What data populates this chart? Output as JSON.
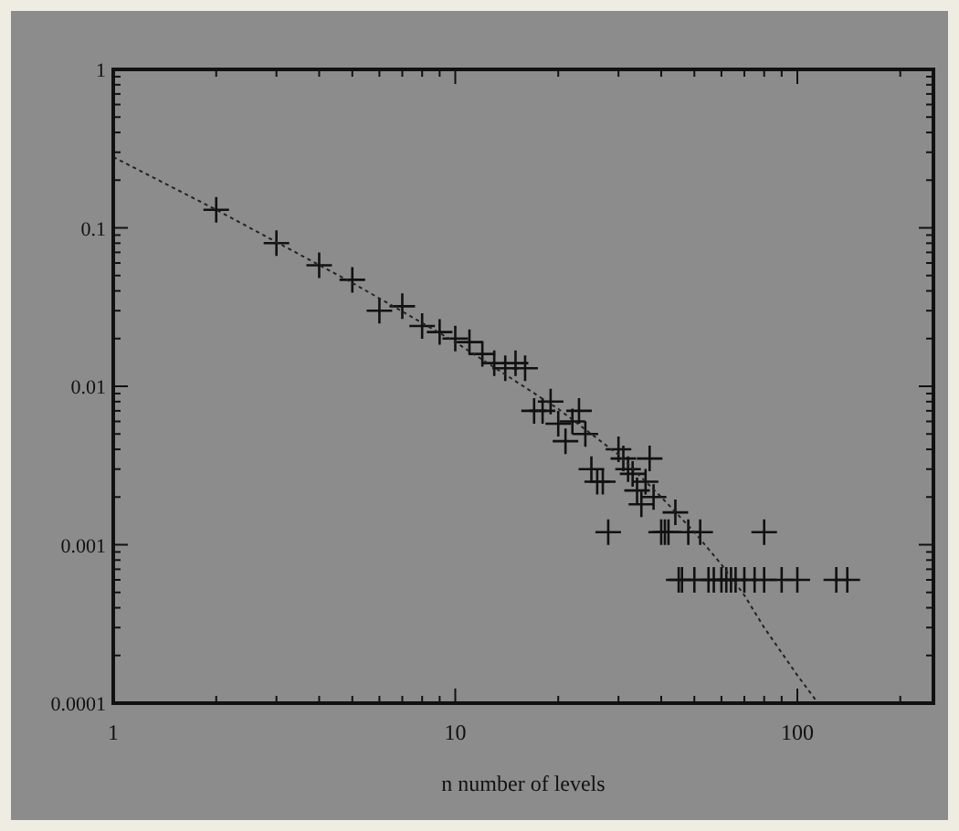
{
  "chart_data": {
    "type": "scatter",
    "xlabel": "n number of levels",
    "log": "xy",
    "grid": false,
    "xlim": [
      1,
      250
    ],
    "xticks": [
      1,
      10,
      100
    ],
    "ylim": [
      0.0001,
      1
    ],
    "yticks": [
      1,
      0.1,
      0.01,
      0.001,
      0.0001
    ],
    "series": [
      {
        "marker": "cross",
        "color": "#111111",
        "x": [
          2,
          3,
          4,
          5,
          6,
          7,
          8,
          9,
          10,
          11,
          12,
          13,
          14,
          15,
          16,
          17,
          18,
          19,
          20,
          21,
          22,
          23,
          24,
          25,
          26,
          27,
          28,
          30,
          31,
          32,
          33,
          34,
          35,
          36,
          37,
          38,
          40,
          41,
          42,
          44,
          45,
          46,
          48,
          50,
          52,
          55,
          57,
          60,
          62,
          64,
          66,
          70,
          75,
          80,
          80,
          90,
          100,
          130,
          140
        ],
        "values": [
          0.13,
          0.08,
          0.058,
          0.047,
          0.03,
          0.032,
          0.024,
          0.022,
          0.02,
          0.019,
          0.016,
          0.014,
          0.013,
          0.014,
          0.013,
          0.007,
          0.007,
          0.008,
          0.0058,
          0.0045,
          0.006,
          0.007,
          0.005,
          0.003,
          0.0025,
          0.0025,
          0.0012,
          0.004,
          0.0035,
          0.003,
          0.0028,
          0.0022,
          0.0018,
          0.0025,
          0.0035,
          0.002,
          0.0012,
          0.0012,
          0.0012,
          0.0016,
          0.0006,
          0.0006,
          0.0012,
          0.0006,
          0.0012,
          0.0006,
          0.0006,
          0.0006,
          0.0006,
          0.0006,
          0.0006,
          0.0006,
          0.0006,
          0.0012,
          0.0006,
          0.0006,
          0.0006,
          0.0006,
          0.0006
        ]
      },
      {
        "type": "line",
        "color": "#222222",
        "line_style": "dotted",
        "x": [
          1,
          2,
          5,
          10,
          20,
          30,
          40,
          50,
          60,
          70,
          80,
          100,
          115
        ],
        "values": [
          0.28,
          0.13,
          0.045,
          0.019,
          0.0072,
          0.0037,
          0.002,
          0.0012,
          0.00075,
          0.00048,
          0.0003,
          0.00015,
          0.0001
        ]
      }
    ]
  }
}
